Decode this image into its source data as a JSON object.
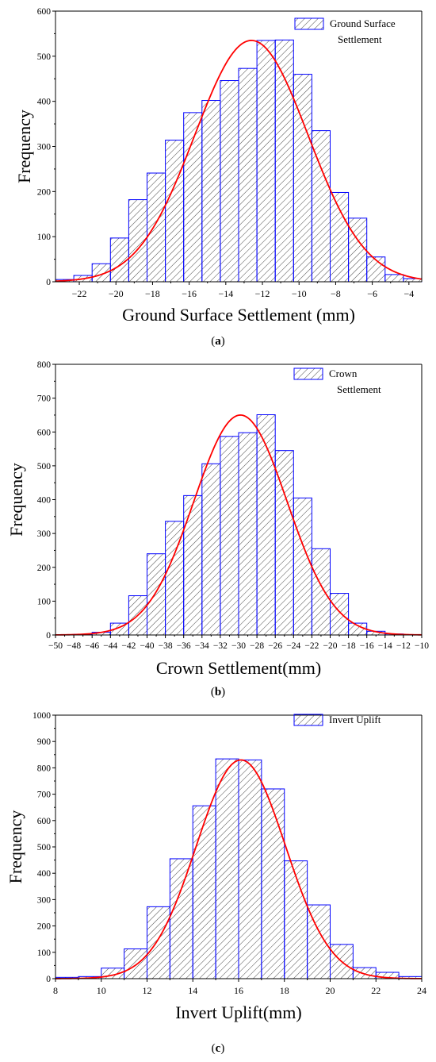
{
  "chart_data": [
    {
      "type": "bar",
      "panel_label": "a",
      "title": "",
      "xlabel": "Ground Surface Settlement (mm)",
      "ylabel": "Frequency",
      "legend": {
        "label_lines": [
          "Ground Surface",
          "Settlement"
        ],
        "placement": "top-right"
      },
      "xlim": [
        -23.3,
        -3.3
      ],
      "ylim": [
        0,
        600
      ],
      "xticks": [
        -22,
        -20,
        -18,
        -16,
        -14,
        -12,
        -10,
        -8,
        -6,
        -4
      ],
      "yticks": [
        0,
        100,
        200,
        300,
        400,
        500,
        600
      ],
      "bin_width": 1,
      "bins_left": [
        -23.3,
        -22.3,
        -21.3,
        -20.3,
        -19.3,
        -18.3,
        -17.3,
        -16.3,
        -15.3,
        -14.3,
        -13.3,
        -12.3,
        -11.3,
        -10.3,
        -9.3,
        -8.3,
        -7.3,
        -6.3,
        -5.3,
        -4.3
      ],
      "values": [
        5,
        14,
        40,
        97,
        182,
        241,
        314,
        375,
        402,
        446,
        473,
        535,
        536,
        460,
        335,
        198,
        141,
        55,
        16,
        7
      ],
      "fit_curve": {
        "type": "normal",
        "mean": -12.6,
        "sd": 3.1,
        "peak": 535
      },
      "colors": {
        "bar_edge": "#0000ff",
        "hatch": "#333333",
        "curve": "#ff0000"
      }
    },
    {
      "type": "bar",
      "panel_label": "b",
      "title": "",
      "xlabel": "Crown Settlement(mm)",
      "ylabel": "Frequency",
      "legend": {
        "label_lines": [
          "Crown",
          "Settlement"
        ],
        "placement": "top-right"
      },
      "xlim": [
        -50,
        -10
      ],
      "ylim": [
        0,
        800
      ],
      "xticks": [
        -50,
        -48,
        -46,
        -44,
        -42,
        -40,
        -38,
        -36,
        -34,
        -32,
        -30,
        -28,
        -26,
        -24,
        -22,
        -20,
        -18,
        -16,
        -14,
        -12,
        -10
      ],
      "yticks": [
        0,
        100,
        200,
        300,
        400,
        500,
        600,
        700,
        800
      ],
      "bin_width": 2,
      "bins_left": [
        -48,
        -46,
        -44,
        -42,
        -40,
        -38,
        -36,
        -34,
        -32,
        -30,
        -28,
        -26,
        -24,
        -22,
        -20,
        -18,
        -16,
        -14
      ],
      "values": [
        2,
        8,
        35,
        116,
        240,
        336,
        412,
        506,
        587,
        598,
        651,
        545,
        405,
        255,
        123,
        35,
        11,
        3
      ],
      "fit_curve": {
        "type": "normal",
        "mean": -29.8,
        "sd": 5.1,
        "peak": 650
      },
      "colors": {
        "bar_edge": "#0000ff",
        "hatch": "#333333",
        "curve": "#ff0000"
      }
    },
    {
      "type": "bar",
      "panel_label": "c",
      "title": "",
      "xlabel": "Invert Uplift(mm)",
      "ylabel": "Frequency",
      "legend": {
        "label_lines": [
          "Invert Uplift"
        ],
        "placement": "top-right"
      },
      "xlim": [
        8,
        24
      ],
      "ylim": [
        0,
        1000
      ],
      "xticks": [
        8,
        10,
        12,
        14,
        16,
        18,
        20,
        22,
        24
      ],
      "yticks": [
        0,
        100,
        200,
        300,
        400,
        500,
        600,
        700,
        800,
        900,
        1000
      ],
      "bin_width": 1,
      "bins_left": [
        8,
        9,
        10,
        11,
        12,
        13,
        14,
        15,
        16,
        17,
        18,
        19,
        20,
        21,
        22,
        23
      ],
      "values": [
        5,
        8,
        40,
        113,
        273,
        455,
        656,
        834,
        830,
        720,
        447,
        280,
        130,
        42,
        24,
        8
      ],
      "fit_curve": {
        "type": "normal",
        "mean": 16.1,
        "sd": 1.95,
        "peak": 830
      },
      "colors": {
        "bar_edge": "#0000ff",
        "hatch": "#333333",
        "curve": "#ff0000"
      }
    }
  ]
}
